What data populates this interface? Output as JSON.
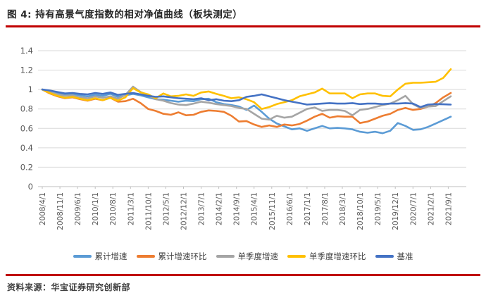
{
  "title": "图 4: 持有高景气度指数的相对净值曲线（板块测定）",
  "source": "资料来源：华宝证券研究创新部",
  "accent_rule_color": "#C00000",
  "chart_data": {
    "type": "line",
    "title": "持有高景气度指数的相对净值曲线（板块测定）",
    "xlabel": "",
    "ylabel": "",
    "ylim": [
      0,
      1.4
    ],
    "y_tick_labels": [
      "0",
      "0.2",
      "0.4",
      "0.6",
      "0.8",
      "1",
      "1.2",
      "1.4"
    ],
    "grid": "horizontal",
    "legend_position": "bottom",
    "x_start_month": "2008/4",
    "x_points_month_step": 3,
    "x_tick_month_step": 7,
    "x_tick_labels": [
      "2008/4/1",
      "2008/11/1",
      "2009/6/1",
      "2010/1/1",
      "2010/8/1",
      "2011/3/1",
      "2011/10/1",
      "2012/5/1",
      "2012/12/1",
      "2013/7/1",
      "2014/2/1",
      "2014/9/1",
      "2015/4/1",
      "2015/11/1",
      "2016/6/1",
      "2017/1/1",
      "2017/8/1",
      "2018/3/1",
      "2018/10/1",
      "2019/5/1",
      "2019/12/1",
      "2020/7/1",
      "2021/2/1",
      "2021/9/1"
    ],
    "series": [
      {
        "name": "累计增速",
        "color": "#5B9BD5",
        "values": [
          1.0,
          0.985,
          0.965,
          0.945,
          0.955,
          0.94,
          0.93,
          0.945,
          0.935,
          0.955,
          0.925,
          0.94,
          0.955,
          0.94,
          0.92,
          0.9,
          0.895,
          0.885,
          0.875,
          0.885,
          0.88,
          0.9,
          0.905,
          0.87,
          0.85,
          0.84,
          0.825,
          0.79,
          0.835,
          0.77,
          0.7,
          0.65,
          0.62,
          0.59,
          0.6,
          0.575,
          0.6,
          0.625,
          0.6,
          0.605,
          0.6,
          0.59,
          0.565,
          0.555,
          0.565,
          0.55,
          0.575,
          0.655,
          0.625,
          0.585,
          0.59,
          0.615,
          0.65,
          0.685,
          0.72
        ]
      },
      {
        "name": "累计增速环比",
        "color": "#ED7D31",
        "values": [
          1.0,
          0.96,
          0.93,
          0.91,
          0.92,
          0.9,
          0.885,
          0.905,
          0.89,
          0.915,
          0.875,
          0.88,
          0.905,
          0.86,
          0.8,
          0.78,
          0.75,
          0.74,
          0.765,
          0.735,
          0.74,
          0.77,
          0.785,
          0.78,
          0.77,
          0.73,
          0.67,
          0.675,
          0.64,
          0.615,
          0.63,
          0.615,
          0.64,
          0.63,
          0.645,
          0.68,
          0.72,
          0.75,
          0.71,
          0.725,
          0.72,
          0.72,
          0.655,
          0.67,
          0.7,
          0.73,
          0.75,
          0.79,
          0.81,
          0.79,
          0.8,
          0.825,
          0.86,
          0.92,
          0.965
        ]
      },
      {
        "name": "单季度增速",
        "color": "#A5A5A5",
        "values": [
          1.0,
          0.975,
          0.95,
          0.935,
          0.94,
          0.92,
          0.91,
          0.93,
          0.915,
          0.93,
          0.905,
          0.945,
          1.03,
          0.975,
          0.94,
          0.9,
          0.885,
          0.86,
          0.845,
          0.84,
          0.855,
          0.875,
          0.865,
          0.85,
          0.84,
          0.83,
          0.81,
          0.8,
          0.75,
          0.7,
          0.69,
          0.73,
          0.71,
          0.72,
          0.76,
          0.8,
          0.815,
          0.78,
          0.79,
          0.79,
          0.78,
          0.735,
          0.79,
          0.8,
          0.82,
          0.84,
          0.855,
          0.89,
          0.935,
          0.85,
          0.81,
          0.825,
          0.83,
          0.88,
          0.93
        ]
      },
      {
        "name": "单季度增速环比",
        "color": "#FFC000",
        "values": [
          1.0,
          0.965,
          0.935,
          0.915,
          0.925,
          0.905,
          0.89,
          0.91,
          0.89,
          0.915,
          0.885,
          0.92,
          1.015,
          0.97,
          0.95,
          0.91,
          0.96,
          0.93,
          0.935,
          0.95,
          0.935,
          0.97,
          0.98,
          0.955,
          0.935,
          0.91,
          0.92,
          0.9,
          0.87,
          0.8,
          0.82,
          0.85,
          0.87,
          0.89,
          0.93,
          0.95,
          0.97,
          1.01,
          0.96,
          0.96,
          0.96,
          0.91,
          0.95,
          0.96,
          0.96,
          0.935,
          0.93,
          1.0,
          1.06,
          1.07,
          1.07,
          1.075,
          1.08,
          1.12,
          1.21
        ]
      },
      {
        "name": "基准",
        "color": "#4472C4",
        "values": [
          1.0,
          0.99,
          0.975,
          0.96,
          0.965,
          0.955,
          0.95,
          0.965,
          0.955,
          0.97,
          0.945,
          0.955,
          0.965,
          0.95,
          0.935,
          0.925,
          0.93,
          0.92,
          0.91,
          0.905,
          0.9,
          0.91,
          0.89,
          0.9,
          0.885,
          0.88,
          0.89,
          0.925,
          0.935,
          0.95,
          0.93,
          0.91,
          0.89,
          0.875,
          0.86,
          0.845,
          0.85,
          0.855,
          0.86,
          0.855,
          0.855,
          0.86,
          0.85,
          0.855,
          0.855,
          0.85,
          0.855,
          0.855,
          0.86,
          0.855,
          0.82,
          0.845,
          0.85,
          0.848,
          0.845
        ]
      }
    ],
    "axis_color": "#BFBFBF",
    "gridline_color": "#D9D9D9",
    "tick_label_color": "#595959"
  }
}
